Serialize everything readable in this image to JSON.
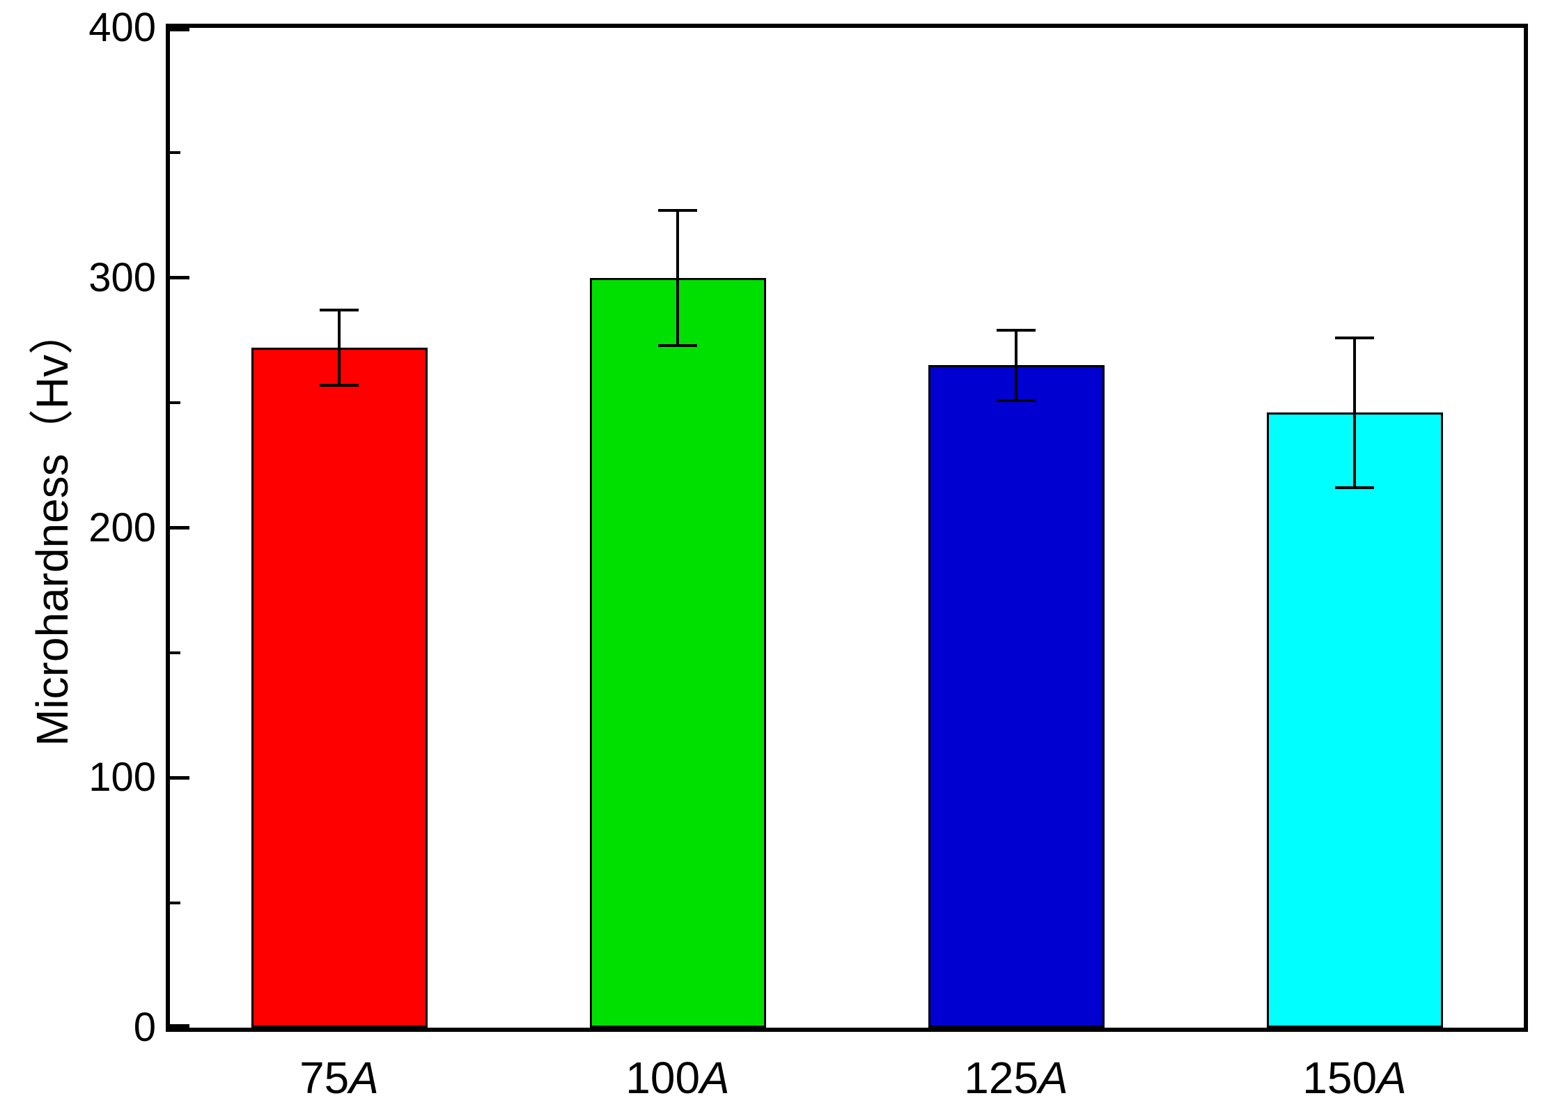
{
  "figure": {
    "background": "#ffffff",
    "frame_color": "#000000"
  },
  "chart_data": {
    "type": "bar",
    "title": "",
    "xlabel": "",
    "ylabel": "Microhardness（Hv）",
    "ylim": [
      0,
      400
    ],
    "yticks": [
      0,
      100,
      200,
      300,
      400
    ],
    "minor_tick_step": 50,
    "grid": false,
    "legend": "none",
    "categories": [
      "75A",
      "100A",
      "125A",
      "150A"
    ],
    "category_parts": [
      {
        "num": "75",
        "suffix": "A"
      },
      {
        "num": "100",
        "suffix": "A"
      },
      {
        "num": "125",
        "suffix": "A"
      },
      {
        "num": "150",
        "suffix": "A"
      }
    ],
    "series": [
      {
        "name": "Microhardness",
        "values": [
          272,
          300,
          265,
          246
        ],
        "errors": [
          15,
          27,
          14,
          30
        ]
      }
    ],
    "bar_colors": [
      "#ff0000",
      "#00e000",
      "#0000d0",
      "#00ffff"
    ],
    "error_bar_color": "#000000"
  }
}
